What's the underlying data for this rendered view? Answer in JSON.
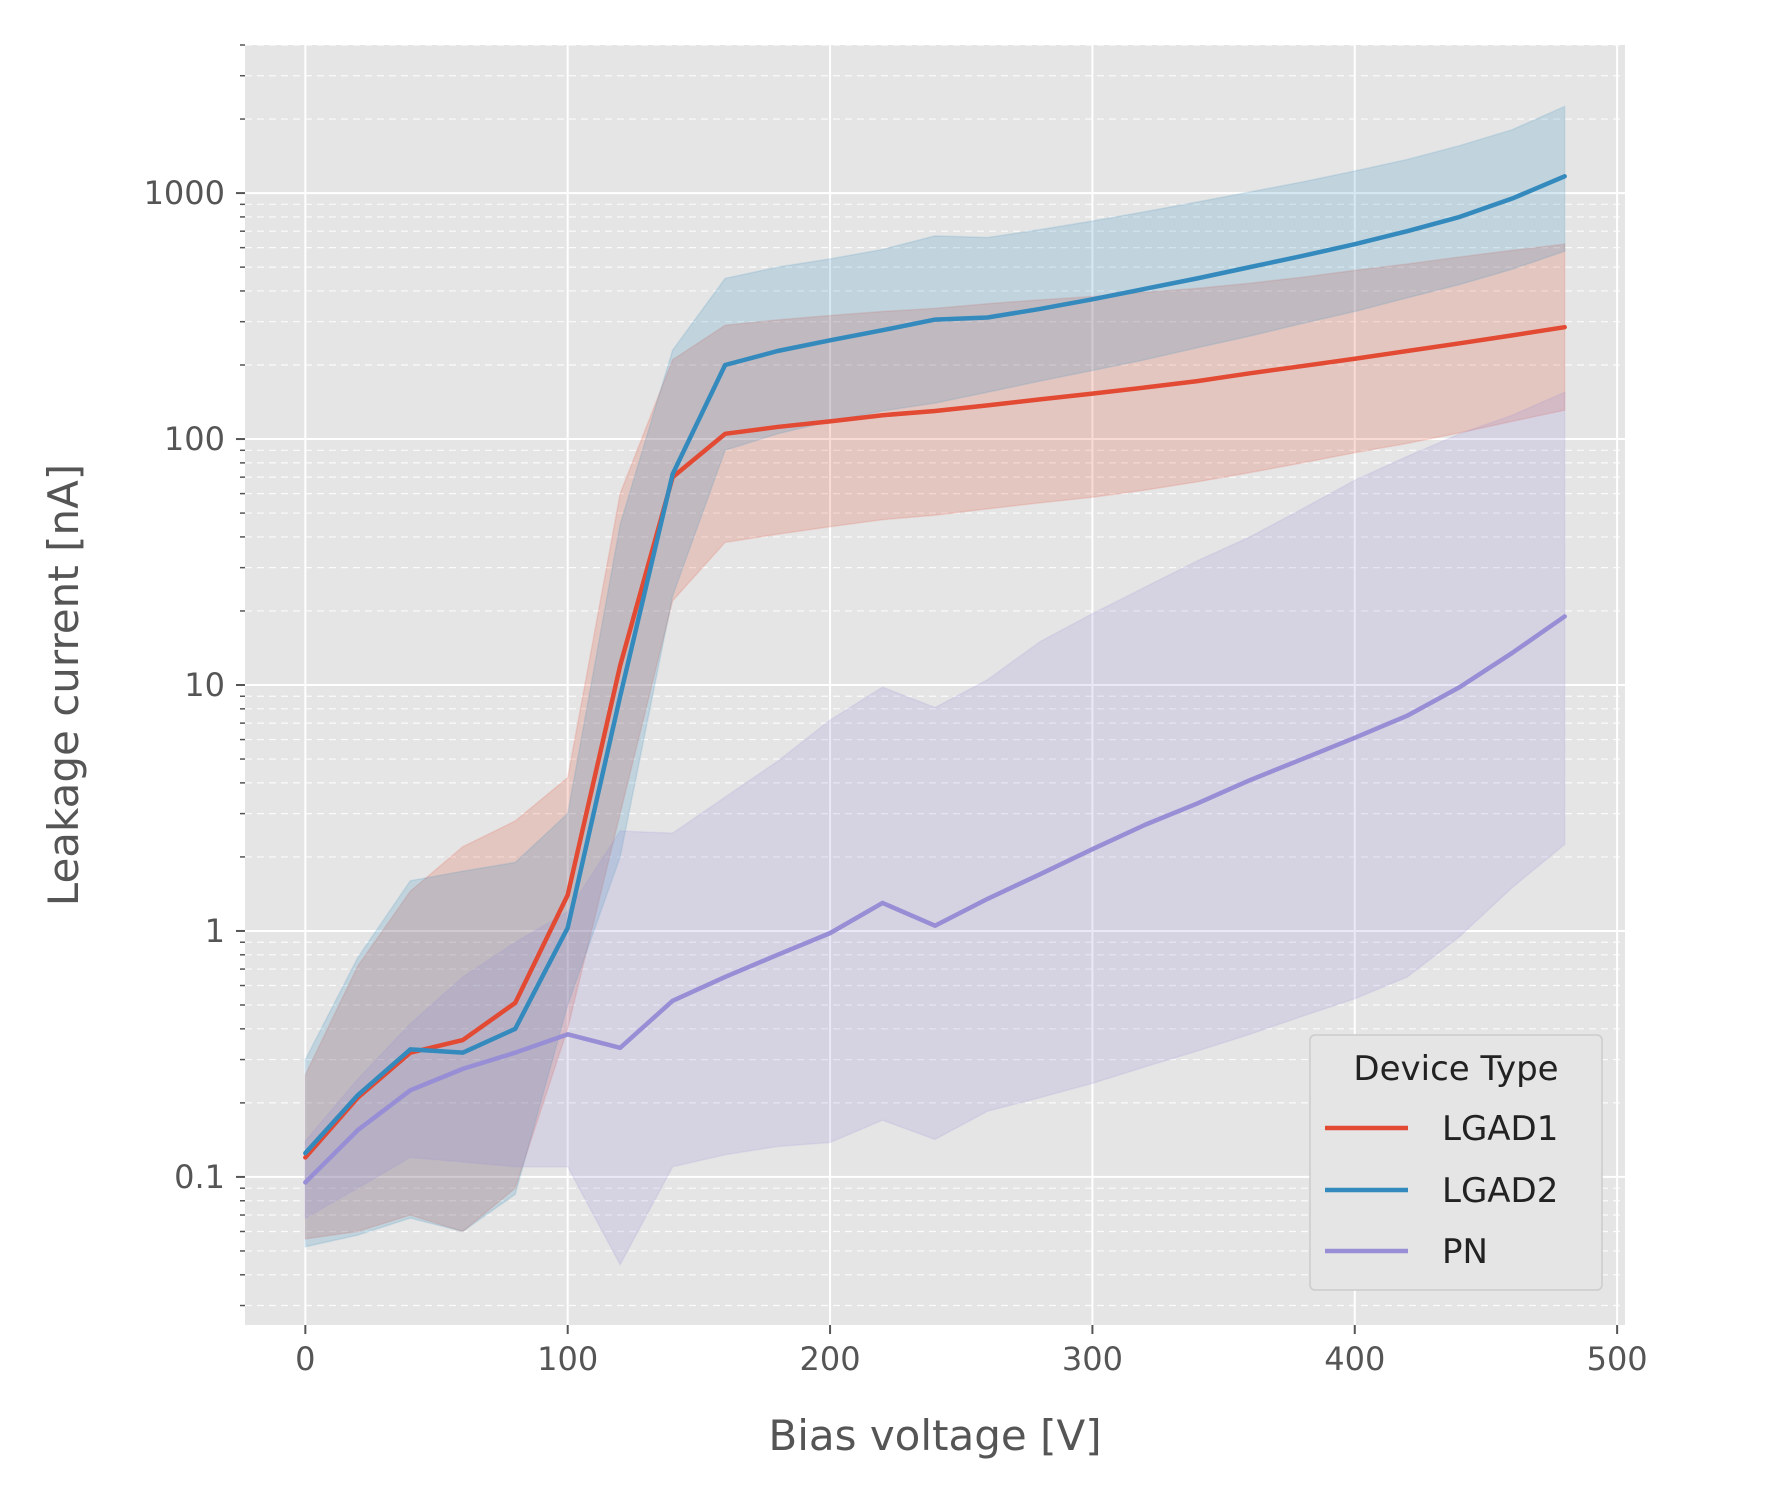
{
  "chart_data": {
    "type": "line",
    "title": "",
    "xlabel": "Bias voltage [V]",
    "ylabel": "Leakage current [nA]",
    "xlim": [
      -23,
      503
    ],
    "ylim": [
      0.025,
      4000
    ],
    "yscale": "log",
    "grid": true,
    "xticks": [
      0,
      100,
      200,
      300,
      400,
      500
    ],
    "xtick_labels": [
      "0",
      "100",
      "200",
      "300",
      "400",
      "500"
    ],
    "yticks": [
      0.1,
      1,
      10,
      100,
      1000
    ],
    "ytick_labels": [
      "0.1",
      "1",
      "10",
      "100",
      "1000"
    ],
    "legend": {
      "title": "Device Type",
      "location": "lower-right"
    },
    "series": [
      {
        "name": "LGAD1",
        "color": "#E24A33",
        "x": [
          0,
          20,
          40,
          60,
          80,
          100,
          120,
          140,
          160,
          180,
          200,
          220,
          240,
          260,
          280,
          300,
          320,
          340,
          360,
          380,
          400,
          420,
          440,
          460,
          480
        ],
        "y": [
          0.12,
          0.21,
          0.32,
          0.36,
          0.51,
          1.4,
          12,
          70,
          105,
          112,
          118,
          125,
          130,
          137,
          145,
          153,
          162,
          172,
          185,
          198,
          212,
          228,
          245,
          264,
          285
        ],
        "lower": [
          0.056,
          0.06,
          0.07,
          0.06,
          0.09,
          0.4,
          3,
          22,
          38,
          41,
          44,
          47,
          49,
          52,
          55,
          58,
          62,
          67,
          73,
          80,
          88,
          96,
          106,
          118,
          131
        ],
        "upper": [
          0.26,
          0.72,
          1.45,
          2.2,
          2.8,
          4.2,
          60,
          210,
          290,
          305,
          318,
          330,
          340,
          355,
          368,
          380,
          395,
          410,
          430,
          455,
          485,
          515,
          550,
          585,
          620
        ]
      },
      {
        "name": "LGAD2",
        "color": "#348ABD",
        "x": [
          0,
          20,
          40,
          60,
          80,
          100,
          120,
          140,
          160,
          180,
          200,
          220,
          240,
          260,
          280,
          300,
          320,
          340,
          360,
          380,
          400,
          420,
          440,
          460,
          480
        ],
        "y": [
          0.125,
          0.215,
          0.33,
          0.32,
          0.4,
          1.03,
          9,
          72,
          200,
          228,
          252,
          277,
          306,
          312,
          338,
          370,
          408,
          450,
          500,
          555,
          620,
          700,
          800,
          950,
          1170
        ],
        "lower": [
          0.052,
          0.058,
          0.068,
          0.06,
          0.085,
          0.5,
          2,
          23,
          90,
          105,
          118,
          130,
          140,
          155,
          172,
          190,
          210,
          235,
          262,
          295,
          330,
          375,
          425,
          490,
          580
        ],
        "upper": [
          0.3,
          0.78,
          1.6,
          1.75,
          1.9,
          3,
          45,
          230,
          450,
          500,
          540,
          590,
          670,
          660,
          710,
          770,
          840,
          920,
          1010,
          1110,
          1230,
          1370,
          1560,
          1810,
          2250
        ]
      },
      {
        "name": "PN",
        "color": "#988ED5",
        "x": [
          0,
          20,
          40,
          60,
          80,
          100,
          120,
          140,
          160,
          180,
          200,
          220,
          240,
          260,
          280,
          300,
          320,
          340,
          360,
          380,
          400,
          420,
          440,
          460,
          480
        ],
        "y": [
          0.095,
          0.155,
          0.225,
          0.275,
          0.32,
          0.38,
          0.335,
          0.52,
          0.65,
          0.8,
          0.98,
          1.3,
          1.05,
          1.35,
          1.7,
          2.15,
          2.7,
          3.3,
          4.1,
          5,
          6.1,
          7.5,
          9.8,
          13.5,
          19
        ],
        "lower": [
          0.068,
          0.09,
          0.12,
          0.115,
          0.11,
          0.11,
          0.044,
          0.11,
          0.123,
          0.133,
          0.138,
          0.17,
          0.142,
          0.185,
          0.21,
          0.24,
          0.28,
          0.325,
          0.38,
          0.45,
          0.53,
          0.65,
          0.95,
          1.5,
          2.25
        ],
        "upper": [
          0.14,
          0.25,
          0.42,
          0.65,
          0.9,
          1.2,
          2.55,
          2.5,
          3.5,
          4.9,
          7.2,
          9.8,
          8.1,
          10.5,
          15,
          19.5,
          25,
          32,
          40,
          52,
          68,
          85,
          105,
          125,
          155
        ]
      }
    ]
  }
}
